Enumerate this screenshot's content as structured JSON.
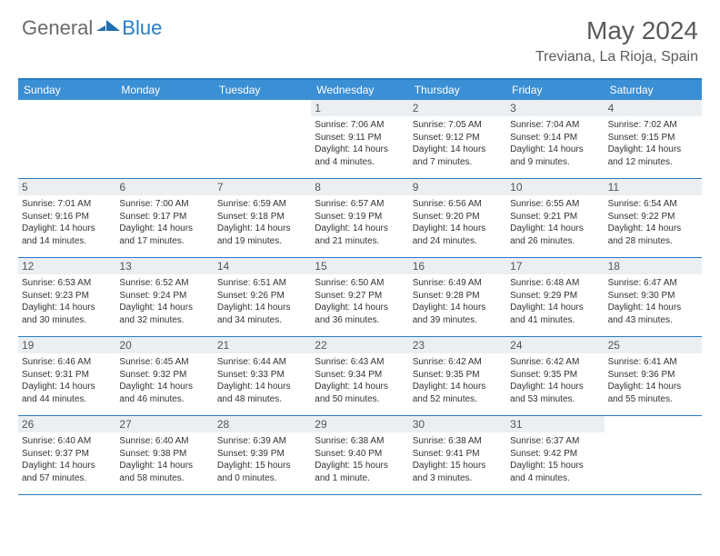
{
  "logo": {
    "general": "General",
    "blue": "Blue"
  },
  "title": "May 2024",
  "location": "Treviana, La Rioja, Spain",
  "colors": {
    "header_bar": "#3b8fd4",
    "accent_line": "#2a7cc4",
    "daynum_bg": "#ebeff2",
    "text_body": "#333333",
    "text_muted": "#5a5a5a"
  },
  "weekdays": [
    "Sunday",
    "Monday",
    "Tuesday",
    "Wednesday",
    "Thursday",
    "Friday",
    "Saturday"
  ],
  "weeks": [
    [
      {
        "n": "",
        "sunrise": "",
        "sunset": "",
        "daylight": ""
      },
      {
        "n": "",
        "sunrise": "",
        "sunset": "",
        "daylight": ""
      },
      {
        "n": "",
        "sunrise": "",
        "sunset": "",
        "daylight": ""
      },
      {
        "n": "1",
        "sunrise": "Sunrise: 7:06 AM",
        "sunset": "Sunset: 9:11 PM",
        "daylight": "Daylight: 14 hours and 4 minutes."
      },
      {
        "n": "2",
        "sunrise": "Sunrise: 7:05 AM",
        "sunset": "Sunset: 9:12 PM",
        "daylight": "Daylight: 14 hours and 7 minutes."
      },
      {
        "n": "3",
        "sunrise": "Sunrise: 7:04 AM",
        "sunset": "Sunset: 9:14 PM",
        "daylight": "Daylight: 14 hours and 9 minutes."
      },
      {
        "n": "4",
        "sunrise": "Sunrise: 7:02 AM",
        "sunset": "Sunset: 9:15 PM",
        "daylight": "Daylight: 14 hours and 12 minutes."
      }
    ],
    [
      {
        "n": "5",
        "sunrise": "Sunrise: 7:01 AM",
        "sunset": "Sunset: 9:16 PM",
        "daylight": "Daylight: 14 hours and 14 minutes."
      },
      {
        "n": "6",
        "sunrise": "Sunrise: 7:00 AM",
        "sunset": "Sunset: 9:17 PM",
        "daylight": "Daylight: 14 hours and 17 minutes."
      },
      {
        "n": "7",
        "sunrise": "Sunrise: 6:59 AM",
        "sunset": "Sunset: 9:18 PM",
        "daylight": "Daylight: 14 hours and 19 minutes."
      },
      {
        "n": "8",
        "sunrise": "Sunrise: 6:57 AM",
        "sunset": "Sunset: 9:19 PM",
        "daylight": "Daylight: 14 hours and 21 minutes."
      },
      {
        "n": "9",
        "sunrise": "Sunrise: 6:56 AM",
        "sunset": "Sunset: 9:20 PM",
        "daylight": "Daylight: 14 hours and 24 minutes."
      },
      {
        "n": "10",
        "sunrise": "Sunrise: 6:55 AM",
        "sunset": "Sunset: 9:21 PM",
        "daylight": "Daylight: 14 hours and 26 minutes."
      },
      {
        "n": "11",
        "sunrise": "Sunrise: 6:54 AM",
        "sunset": "Sunset: 9:22 PM",
        "daylight": "Daylight: 14 hours and 28 minutes."
      }
    ],
    [
      {
        "n": "12",
        "sunrise": "Sunrise: 6:53 AM",
        "sunset": "Sunset: 9:23 PM",
        "daylight": "Daylight: 14 hours and 30 minutes."
      },
      {
        "n": "13",
        "sunrise": "Sunrise: 6:52 AM",
        "sunset": "Sunset: 9:24 PM",
        "daylight": "Daylight: 14 hours and 32 minutes."
      },
      {
        "n": "14",
        "sunrise": "Sunrise: 6:51 AM",
        "sunset": "Sunset: 9:26 PM",
        "daylight": "Daylight: 14 hours and 34 minutes."
      },
      {
        "n": "15",
        "sunrise": "Sunrise: 6:50 AM",
        "sunset": "Sunset: 9:27 PM",
        "daylight": "Daylight: 14 hours and 36 minutes."
      },
      {
        "n": "16",
        "sunrise": "Sunrise: 6:49 AM",
        "sunset": "Sunset: 9:28 PM",
        "daylight": "Daylight: 14 hours and 39 minutes."
      },
      {
        "n": "17",
        "sunrise": "Sunrise: 6:48 AM",
        "sunset": "Sunset: 9:29 PM",
        "daylight": "Daylight: 14 hours and 41 minutes."
      },
      {
        "n": "18",
        "sunrise": "Sunrise: 6:47 AM",
        "sunset": "Sunset: 9:30 PM",
        "daylight": "Daylight: 14 hours and 43 minutes."
      }
    ],
    [
      {
        "n": "19",
        "sunrise": "Sunrise: 6:46 AM",
        "sunset": "Sunset: 9:31 PM",
        "daylight": "Daylight: 14 hours and 44 minutes."
      },
      {
        "n": "20",
        "sunrise": "Sunrise: 6:45 AM",
        "sunset": "Sunset: 9:32 PM",
        "daylight": "Daylight: 14 hours and 46 minutes."
      },
      {
        "n": "21",
        "sunrise": "Sunrise: 6:44 AM",
        "sunset": "Sunset: 9:33 PM",
        "daylight": "Daylight: 14 hours and 48 minutes."
      },
      {
        "n": "22",
        "sunrise": "Sunrise: 6:43 AM",
        "sunset": "Sunset: 9:34 PM",
        "daylight": "Daylight: 14 hours and 50 minutes."
      },
      {
        "n": "23",
        "sunrise": "Sunrise: 6:42 AM",
        "sunset": "Sunset: 9:35 PM",
        "daylight": "Daylight: 14 hours and 52 minutes."
      },
      {
        "n": "24",
        "sunrise": "Sunrise: 6:42 AM",
        "sunset": "Sunset: 9:35 PM",
        "daylight": "Daylight: 14 hours and 53 minutes."
      },
      {
        "n": "25",
        "sunrise": "Sunrise: 6:41 AM",
        "sunset": "Sunset: 9:36 PM",
        "daylight": "Daylight: 14 hours and 55 minutes."
      }
    ],
    [
      {
        "n": "26",
        "sunrise": "Sunrise: 6:40 AM",
        "sunset": "Sunset: 9:37 PM",
        "daylight": "Daylight: 14 hours and 57 minutes."
      },
      {
        "n": "27",
        "sunrise": "Sunrise: 6:40 AM",
        "sunset": "Sunset: 9:38 PM",
        "daylight": "Daylight: 14 hours and 58 minutes."
      },
      {
        "n": "28",
        "sunrise": "Sunrise: 6:39 AM",
        "sunset": "Sunset: 9:39 PM",
        "daylight": "Daylight: 15 hours and 0 minutes."
      },
      {
        "n": "29",
        "sunrise": "Sunrise: 6:38 AM",
        "sunset": "Sunset: 9:40 PM",
        "daylight": "Daylight: 15 hours and 1 minute."
      },
      {
        "n": "30",
        "sunrise": "Sunrise: 6:38 AM",
        "sunset": "Sunset: 9:41 PM",
        "daylight": "Daylight: 15 hours and 3 minutes."
      },
      {
        "n": "31",
        "sunrise": "Sunrise: 6:37 AM",
        "sunset": "Sunset: 9:42 PM",
        "daylight": "Daylight: 15 hours and 4 minutes."
      },
      {
        "n": "",
        "sunrise": "",
        "sunset": "",
        "daylight": ""
      }
    ]
  ]
}
